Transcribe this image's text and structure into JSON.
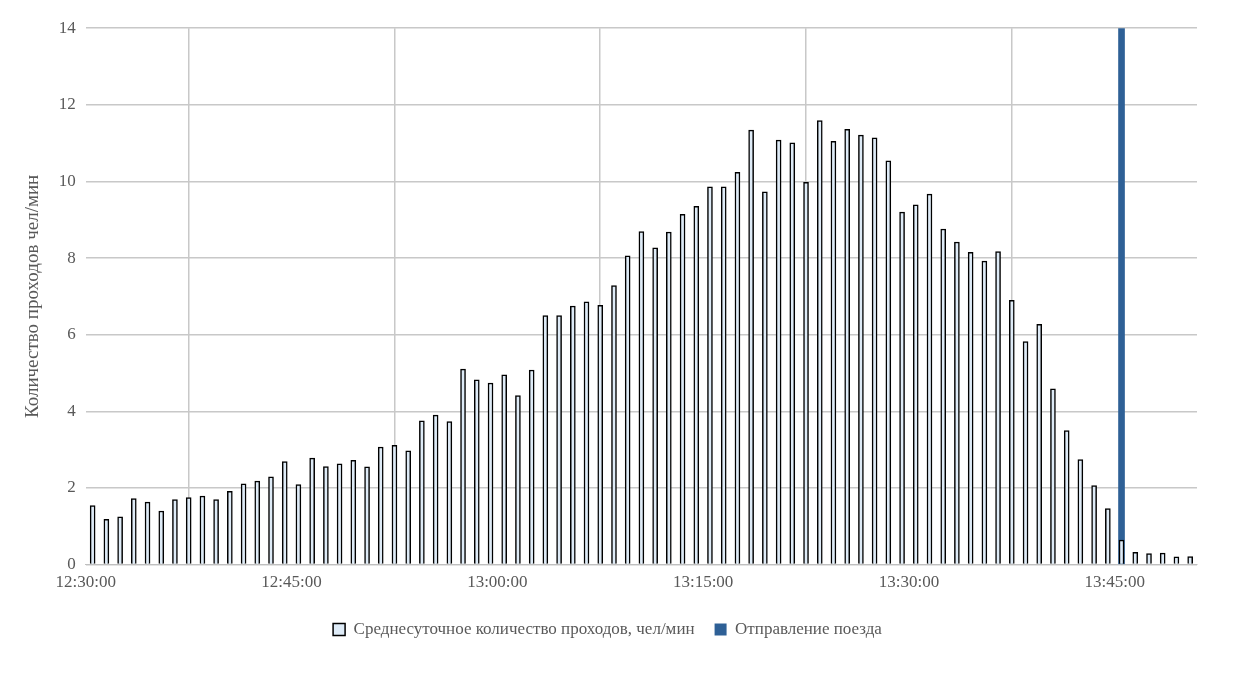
{
  "chart_data": {
    "type": "bar",
    "ylabel": "Количество проходов чел/мин",
    "xlim": [
      12.5,
      13.85
    ],
    "xticks": [
      {
        "value": 12.5,
        "label": "12:30:00"
      },
      {
        "value": 12.75,
        "label": "12:45:00"
      },
      {
        "value": 13,
        "label": "13:00:00"
      },
      {
        "value": 13.25,
        "label": "13:15:00"
      },
      {
        "value": 13.5,
        "label": "13:30:00"
      },
      {
        "value": 13.75,
        "label": "13:45:00"
      }
    ],
    "ylim": [
      0,
      14
    ],
    "yticks": [
      0,
      2,
      4,
      6,
      8,
      10,
      12,
      14
    ],
    "grid": true,
    "legend": "bottom",
    "series": [
      {
        "name": "Среднесуточное количество проходов, чел/мин",
        "color": "#deebf7",
        "x": [
          12.5083,
          12.525,
          12.5417,
          12.5583,
          12.575,
          12.5917,
          12.6083,
          12.625,
          12.6417,
          12.6583,
          12.675,
          12.6917,
          12.7083,
          12.725,
          12.7417,
          12.7583,
          12.775,
          12.7917,
          12.8083,
          12.825,
          12.8417,
          12.8583,
          12.875,
          12.8917,
          12.9083,
          12.925,
          12.9417,
          12.9583,
          12.975,
          12.9917,
          13.0083,
          13.025,
          13.0417,
          13.0583,
          13.075,
          13.0917,
          13.1083,
          13.125,
          13.1417,
          13.1583,
          13.175,
          13.1917,
          13.2083,
          13.225,
          13.2417,
          13.2583,
          13.275,
          13.2917,
          13.3083,
          13.325,
          13.3417,
          13.3583,
          13.375,
          13.3917,
          13.4083,
          13.425,
          13.4417,
          13.4583,
          13.475,
          13.4917,
          13.5083,
          13.525,
          13.5417,
          13.5583,
          13.575,
          13.5917,
          13.6083,
          13.625,
          13.6417,
          13.6583,
          13.675,
          13.6917,
          13.7083,
          13.725,
          13.7417,
          13.7583,
          13.775,
          13.7917,
          13.8083,
          13.825,
          13.8417
        ],
        "values": [
          1.54,
          1.18,
          1.25,
          1.72,
          1.63,
          1.4,
          1.7,
          1.75,
          1.79,
          1.7,
          1.91,
          2.11,
          2.18,
          2.29,
          2.69,
          2.09,
          2.78,
          2.56,
          2.63,
          2.72,
          2.55,
          3.07,
          3.11,
          2.97,
          3.75,
          3.9,
          3.73,
          5.1,
          4.82,
          4.74,
          4.95,
          4.41,
          5.08,
          6.5,
          6.5,
          6.75,
          6.86,
          6.77,
          7.28,
          8.06,
          8.69,
          8.27,
          8.68,
          9.14,
          9.35,
          9.86,
          9.86,
          10.24,
          11.34,
          9.73,
          11.08,
          11.01,
          9.98,
          11.59,
          11.05,
          11.36,
          11.21,
          11.14,
          10.54,
          9.2,
          9.39,
          9.67,
          8.76,
          8.42,
          8.15,
          7.92,
          8.17,
          6.9,
          5.82,
          6.27,
          4.59,
          3.5,
          2.74,
          2.06,
          1.46,
          0.64,
          0.32,
          0.29,
          0.3,
          0.2,
          0.21
        ]
      },
      {
        "name": "Отправление поезда",
        "color": "#2e6096",
        "x": [
          13.7583
        ],
        "values": [
          14
        ]
      }
    ]
  }
}
